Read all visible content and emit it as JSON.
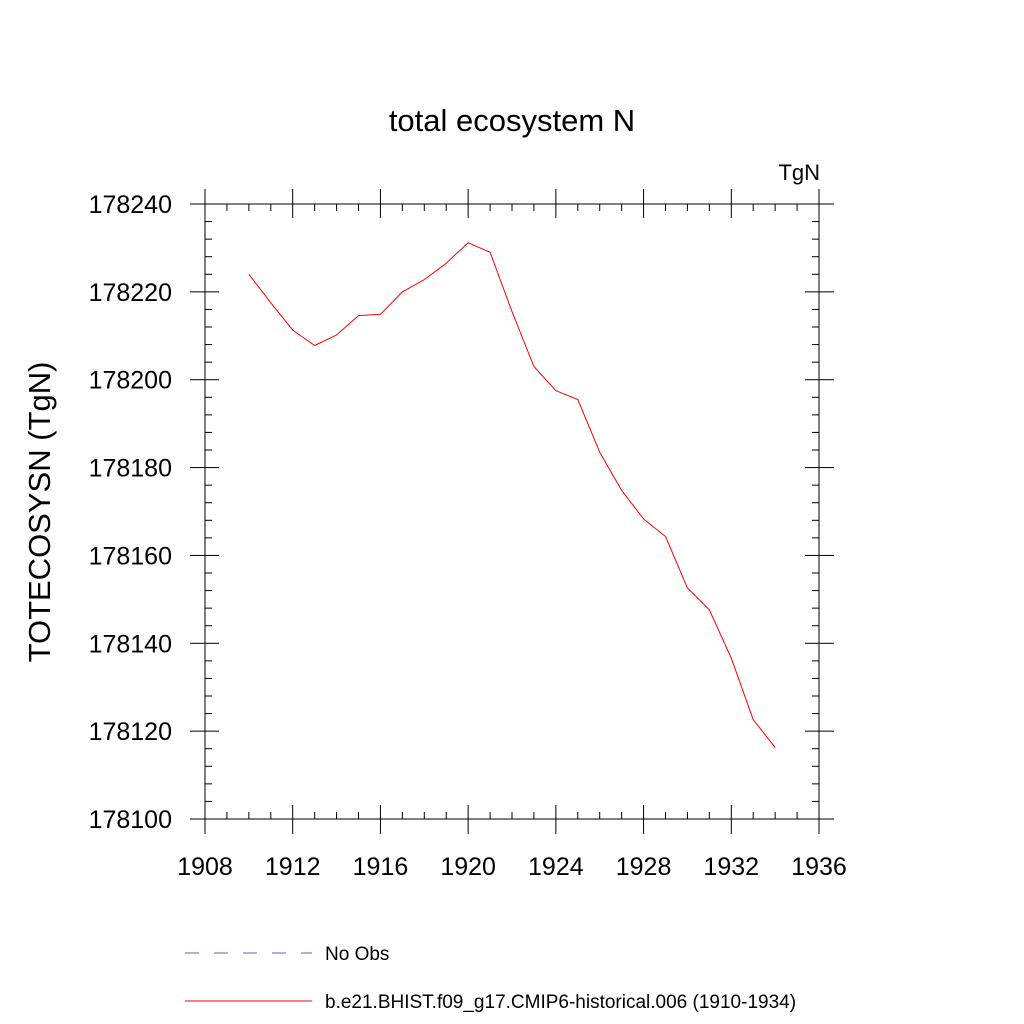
{
  "chart_data": {
    "type": "line",
    "title": "total ecosystem N",
    "units_label": "TgN",
    "ylabel": "TOTECOSYSN  (TgN)",
    "xlabel": "",
    "xlim": [
      1908,
      1936
    ],
    "ylim": [
      178100,
      178240
    ],
    "xticks": [
      1908,
      1912,
      1916,
      1920,
      1924,
      1928,
      1932,
      1936
    ],
    "yticks": [
      178100,
      178120,
      178140,
      178160,
      178180,
      178200,
      178220,
      178240
    ],
    "grid": false,
    "legend_position": "bottom",
    "series": [
      {
        "name": "b.e21.BHIST.f09_g17.CMIP6-historical.006 (1910-1934)",
        "color": "#ff0000",
        "style": "solid",
        "x": [
          1910,
          1911,
          1912,
          1913,
          1914,
          1915,
          1916,
          1917,
          1918,
          1919,
          1920,
          1921,
          1922,
          1923,
          1924,
          1925,
          1926,
          1927,
          1928,
          1929,
          1930,
          1931,
          1932,
          1933,
          1934
        ],
        "y": [
          178224,
          178217.5,
          178211.3,
          178207.8,
          178210.2,
          178214.6,
          178214.9,
          178220,
          178222.8,
          178226.5,
          178231.2,
          178229,
          178215.5,
          178203,
          178197.5,
          178195.5,
          178183.5,
          178174.8,
          178168.3,
          178164.3,
          178152.6,
          178147.6,
          178136.6,
          178122.6,
          178116.3
        ]
      }
    ],
    "legend": [
      {
        "label": "No Obs",
        "color": "#6a5acd",
        "style": "dashed"
      },
      {
        "label": "b.e21.BHIST.f09_g17.CMIP6-historical.006 (1910-1934)",
        "color": "#ff0000",
        "style": "solid"
      }
    ]
  }
}
